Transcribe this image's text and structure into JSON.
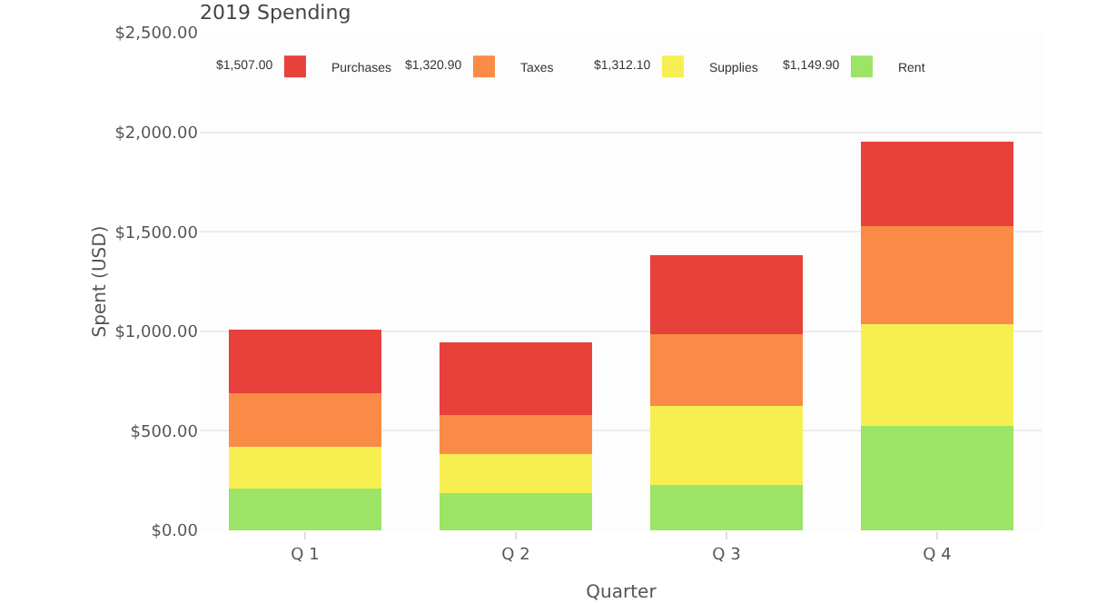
{
  "chart_data": {
    "type": "bar",
    "title": "2019 Spending",
    "xlabel": "Quarter",
    "ylabel": "Spent (USD)",
    "categories": [
      "Q 1",
      "Q 2",
      "Q 3",
      "Q 4"
    ],
    "stacked": true,
    "series": [
      {
        "name": "Rent",
        "color": "#9be466",
        "values": [
          211,
          189,
          227,
          523
        ]
      },
      {
        "name": "Supplies",
        "color": "#f7ef52",
        "values": [
          210,
          193,
          397,
          512
        ]
      },
      {
        "name": "Taxes",
        "color": "#f98b47",
        "values": [
          270,
          196,
          363,
          492
        ]
      },
      {
        "name": "Purchases",
        "color": "#e8403a",
        "values": [
          318,
          367,
          396,
          426
        ]
      }
    ],
    "ylim": [
      0,
      2500
    ],
    "yticks": [
      {
        "value": 0,
        "label": "$0.00"
      },
      {
        "value": 500,
        "label": "$500.00"
      },
      {
        "value": 1000,
        "label": "$1,000.00"
      },
      {
        "value": 1500,
        "label": "$1,500.00"
      },
      {
        "value": 2000,
        "label": "$2,000.00"
      },
      {
        "value": 2500,
        "label": "$2,500.00"
      }
    ],
    "grid": "y",
    "legend": "top left",
    "annotations": [
      "$1,507.00",
      "$1,320.90",
      "$1,312.10",
      "$1,149.90"
    ]
  }
}
